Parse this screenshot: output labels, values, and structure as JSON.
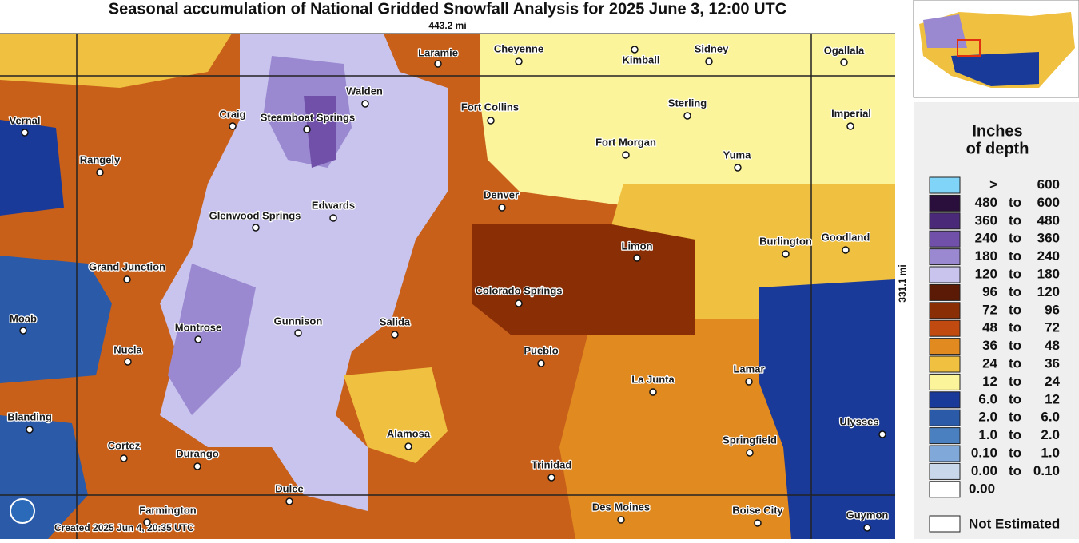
{
  "header": {
    "title": "Seasonal accumulation of National Gridded Snowfall Analysis for 2025 June 3, 12:00 UTC",
    "scale_x": "443.2 mi",
    "scale_y": "331.1 mi"
  },
  "map": {
    "credit": "Created 2025 Jun 4, 20:35 UTC",
    "cities": [
      "Laramie",
      "Cheyenne",
      "Kimball",
      "Sidney",
      "Ogallala",
      "Walden",
      "Fort Collins",
      "Sterling",
      "Imperial",
      "Vernal",
      "Craig",
      "Steamboat Springs",
      "Fort Morgan",
      "Yuma",
      "Rangely",
      "Denver",
      "Edwards",
      "Glenwood Springs",
      "Burlington",
      "Goodland",
      "Limon",
      "Grand Junction",
      "Colorado Springs",
      "Moab",
      "Gunnison",
      "Salida",
      "Montrose",
      "Nucla",
      "Pueblo",
      "La Junta",
      "Lamar",
      "Blanding",
      "Ulysses",
      "Alamosa",
      "Springfield",
      "Cortez",
      "Durango",
      "Trinidad",
      "Dulce",
      "Farmington",
      "Des Moines",
      "Boise City",
      "Guymon"
    ]
  },
  "legend": {
    "title": [
      "Inches",
      "of depth"
    ],
    "rows": [
      {
        "parts": [
          ">",
          "600"
        ],
        "color": "#7fd4f7"
      },
      {
        "parts": [
          "480",
          "to",
          "600"
        ],
        "color": "#2a0f3c"
      },
      {
        "parts": [
          "360",
          "to",
          "480"
        ],
        "color": "#4a2a78"
      },
      {
        "parts": [
          "240",
          "to",
          "360"
        ],
        "color": "#7050a8"
      },
      {
        "parts": [
          "180",
          "to",
          "240"
        ],
        "color": "#9a88d0"
      },
      {
        "parts": [
          "120",
          "to",
          "180"
        ],
        "color": "#c8c4ee"
      },
      {
        "parts": [
          "96",
          "to",
          "120"
        ],
        "color": "#5a1a05"
      },
      {
        "parts": [
          "72",
          "to",
          "96"
        ],
        "color": "#8a2f05"
      },
      {
        "parts": [
          "48",
          "to",
          "72"
        ],
        "color": "#c04a10"
      },
      {
        "parts": [
          "36",
          "to",
          "48"
        ],
        "color": "#e08a20"
      },
      {
        "parts": [
          "24",
          "to",
          "36"
        ],
        "color": "#f0c040"
      },
      {
        "parts": [
          "12",
          "to",
          "24"
        ],
        "color": "#fbf49a"
      },
      {
        "parts": [
          "6.0",
          "to",
          "12"
        ],
        "color": "#1a3a9a"
      },
      {
        "parts": [
          "2.0",
          "to",
          "6.0"
        ],
        "color": "#2a5aa8"
      },
      {
        "parts": [
          "1.0",
          "to",
          "2.0"
        ],
        "color": "#4a80c0"
      },
      {
        "parts": [
          "0.10",
          "to",
          "1.0"
        ],
        "color": "#80a8d8"
      },
      {
        "parts": [
          "0.00",
          "to",
          "0.10"
        ],
        "color": "#c8d8ea"
      },
      {
        "parts": [
          "0.00"
        ],
        "color": "#ffffff"
      }
    ],
    "not_estimated": "Not Estimated"
  }
}
